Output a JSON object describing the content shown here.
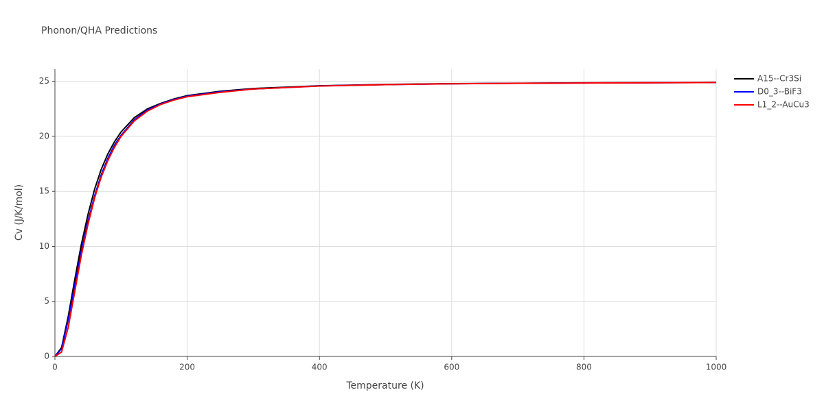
{
  "chart_data": {
    "type": "line",
    "title": "Phonon/QHA Predictions",
    "x_label": "Temperature (K)",
    "y_label": "Cv (J/K/mol)",
    "x": [
      0,
      10,
      20,
      30,
      40,
      50,
      60,
      70,
      80,
      90,
      100,
      120,
      140,
      160,
      180,
      200,
      250,
      300,
      400,
      500,
      600,
      700,
      800,
      900,
      1000
    ],
    "series": [
      {
        "name": "A15--Cr3Si",
        "color": "#000000",
        "values": [
          0,
          0.8,
          3.6,
          7.0,
          10.2,
          12.9,
          15.2,
          17.0,
          18.4,
          19.5,
          20.4,
          21.7,
          22.5,
          23.0,
          23.4,
          23.7,
          24.1,
          24.35,
          24.6,
          24.72,
          24.79,
          24.83,
          24.86,
          24.88,
          24.9
        ]
      },
      {
        "name": "D0_3--BiF3",
        "color": "#0000ff",
        "values": [
          0,
          0.7,
          3.3,
          6.5,
          9.6,
          12.3,
          14.6,
          16.5,
          18.0,
          19.2,
          20.1,
          21.5,
          22.4,
          22.95,
          23.35,
          23.65,
          24.05,
          24.3,
          24.58,
          24.7,
          24.78,
          24.82,
          24.85,
          24.87,
          24.89
        ]
      },
      {
        "name": "L1_2--AuCu3",
        "color": "#ff0000",
        "values": [
          0,
          0.4,
          2.6,
          5.9,
          9.2,
          12.0,
          14.4,
          16.3,
          17.8,
          19.0,
          20.0,
          21.4,
          22.3,
          22.9,
          23.3,
          23.6,
          24.0,
          24.3,
          24.57,
          24.7,
          24.78,
          24.82,
          24.85,
          24.87,
          24.89
        ]
      }
    ],
    "xlim": [
      0,
      1000
    ],
    "xticks": [
      0,
      200,
      400,
      600,
      800,
      1000
    ],
    "ylim": [
      0,
      26.1
    ],
    "yticks": [
      0,
      5,
      10,
      15,
      20,
      25
    ],
    "grid": true,
    "legend": "right"
  }
}
